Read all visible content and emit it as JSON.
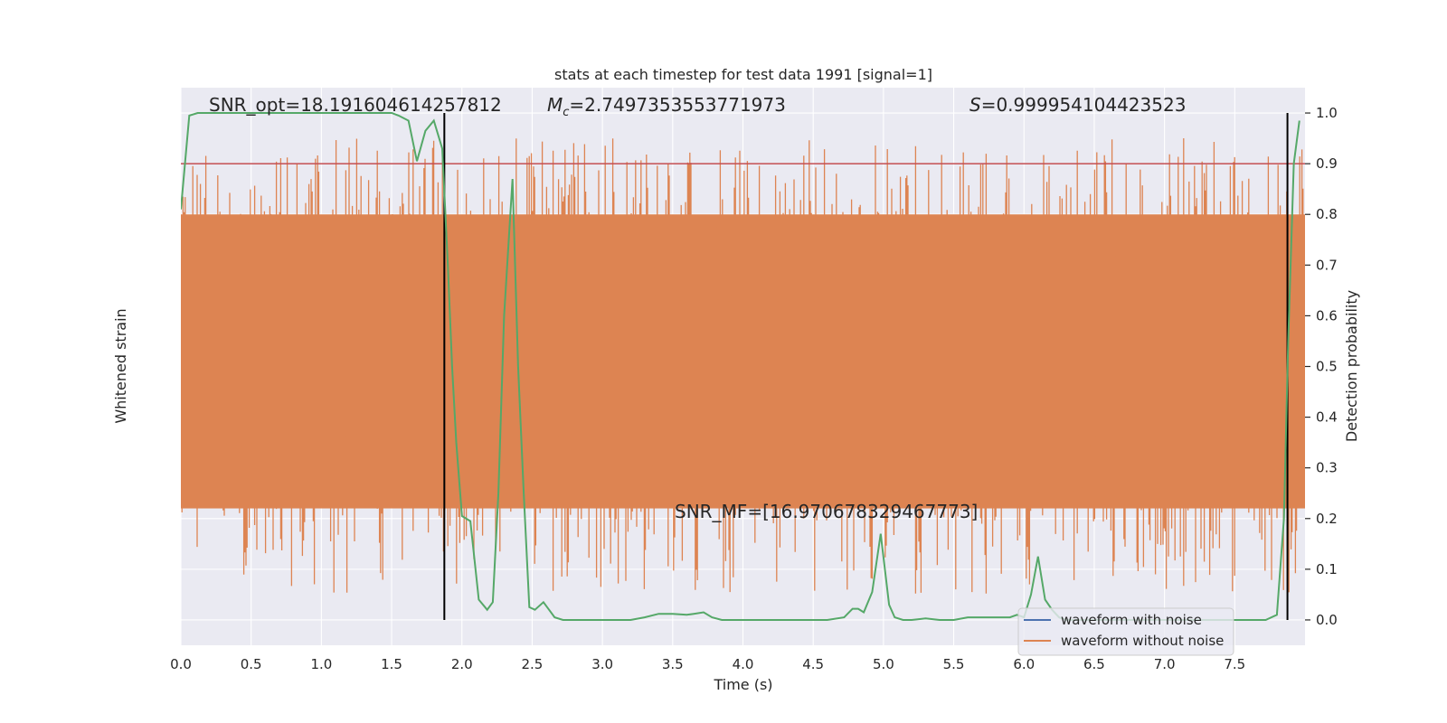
{
  "chart_data": {
    "type": "line",
    "title": "stats at each timestep for test data 1991 [signal=1]",
    "xlabel": "Time (s)",
    "ylabel_left": "Whitened strain",
    "ylabel_right": "Detection probability",
    "xlim": [
      0,
      8
    ],
    "ylim_right": [
      -0.05,
      1.05
    ],
    "x_ticks": [
      "0.0",
      "0.5",
      "1.0",
      "1.5",
      "2.0",
      "2.5",
      "3.0",
      "3.5",
      "4.0",
      "4.5",
      "5.0",
      "5.5",
      "6.0",
      "6.5",
      "7.0",
      "7.5"
    ],
    "x_tick_values": [
      0,
      0.5,
      1,
      1.5,
      2,
      2.5,
      3,
      3.5,
      4,
      4.5,
      5,
      5.5,
      6,
      6.5,
      7,
      7.5
    ],
    "y_ticks_right": [
      "0.0",
      "0.1",
      "0.2",
      "0.3",
      "0.4",
      "0.5",
      "0.6",
      "0.7",
      "0.8",
      "0.9",
      "1.0"
    ],
    "y_tick_values_right": [
      0,
      0.1,
      0.2,
      0.3,
      0.4,
      0.5,
      0.6,
      0.7,
      0.8,
      0.9,
      1.0
    ],
    "grid": true,
    "threshold": {
      "value": 0.9,
      "color": "#c44e52"
    },
    "vertical_lines": {
      "x": [
        1.875,
        7.875
      ],
      "color": "#000000"
    },
    "annotations": {
      "snr_opt": "SNR_opt=18.191604614257812",
      "mc_symbol": "M",
      "mc_sub": "c",
      "mc_value": "=2.7497353553771973",
      "s_symbol": "S",
      "s_value": "=0.999954104423523",
      "snr_mf": "SNR_MF=[16.970678329467773]"
    },
    "legend": {
      "placement": "lower-right",
      "entries": [
        {
          "label": "waveform with noise",
          "color": "#4c72b0"
        },
        {
          "label": "waveform without noise",
          "color": "#dd8452"
        }
      ]
    },
    "series": [
      {
        "name": "detection probability",
        "color": "#55a868",
        "x": [
          0,
          0.06,
          0.12,
          0.2,
          0.4,
          0.6,
          0.8,
          1.0,
          1.2,
          1.4,
          1.5,
          1.55,
          1.62,
          1.68,
          1.74,
          1.8,
          1.86,
          1.9,
          1.93,
          1.96,
          2.0,
          2.06,
          2.12,
          2.18,
          2.22,
          2.26,
          2.3,
          2.36,
          2.4,
          2.44,
          2.48,
          2.52,
          2.58,
          2.62,
          2.66,
          2.72,
          2.8,
          3.0,
          3.2,
          3.3,
          3.4,
          3.5,
          3.6,
          3.65,
          3.72,
          3.78,
          3.85,
          4.0,
          4.2,
          4.4,
          4.6,
          4.72,
          4.78,
          4.82,
          4.86,
          4.92,
          4.98,
          5.04,
          5.08,
          5.14,
          5.2,
          5.3,
          5.4,
          5.5,
          5.6,
          5.7,
          5.8,
          5.9,
          5.95,
          6.0,
          6.05,
          6.1,
          6.15,
          6.2,
          6.25,
          6.3,
          6.4,
          6.6,
          6.8,
          7.0,
          7.2,
          7.4,
          7.6,
          7.72,
          7.8,
          7.85,
          7.88,
          7.92,
          7.96
        ],
        "y": [
          0.81,
          0.995,
          1.0,
          1.0,
          1.0,
          1.0,
          1.0,
          1.0,
          1.0,
          1.0,
          1.0,
          0.995,
          0.985,
          0.905,
          0.965,
          0.985,
          0.93,
          0.7,
          0.5,
          0.35,
          0.205,
          0.195,
          0.04,
          0.02,
          0.035,
          0.25,
          0.6,
          0.87,
          0.5,
          0.25,
          0.025,
          0.02,
          0.035,
          0.02,
          0.005,
          0.0,
          0.0,
          0.0,
          0.0,
          0.005,
          0.012,
          0.012,
          0.01,
          0.012,
          0.015,
          0.005,
          0.0,
          0.0,
          0.0,
          0.0,
          0.0,
          0.005,
          0.022,
          0.022,
          0.015,
          0.055,
          0.17,
          0.03,
          0.005,
          0.0,
          0.0,
          0.003,
          0.0,
          0.0,
          0.005,
          0.005,
          0.005,
          0.005,
          0.01,
          0.005,
          0.05,
          0.125,
          0.04,
          0.02,
          0.005,
          0.0,
          0.0,
          0.0,
          0.0,
          0.0,
          0.0,
          0.0,
          0.0,
          0.0,
          0.01,
          0.2,
          0.55,
          0.9,
          0.985
        ]
      }
    ],
    "noise_band": {
      "color": "#dd8452",
      "typical_range": [
        0.22,
        0.8
      ],
      "peak_range": [
        0.0,
        1.0
      ]
    }
  }
}
